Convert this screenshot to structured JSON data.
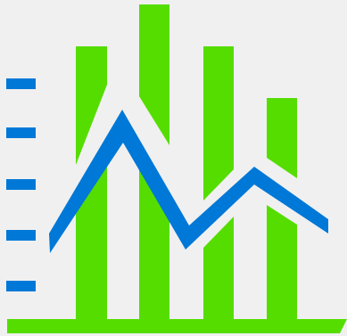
{
  "icon": {
    "name": "bar-line-chart-icon",
    "colors": {
      "background": "#f0f0f0",
      "bars": "#55dd00",
      "line": "#0078d7",
      "ticks": "#0078d7"
    },
    "bars_relative_heights": [
      0.87,
      1.0,
      0.87,
      0.71
    ],
    "line_relative_levels": [
      0.25,
      0.67,
      0.28,
      0.47,
      0.31
    ],
    "tick_count": 5
  }
}
